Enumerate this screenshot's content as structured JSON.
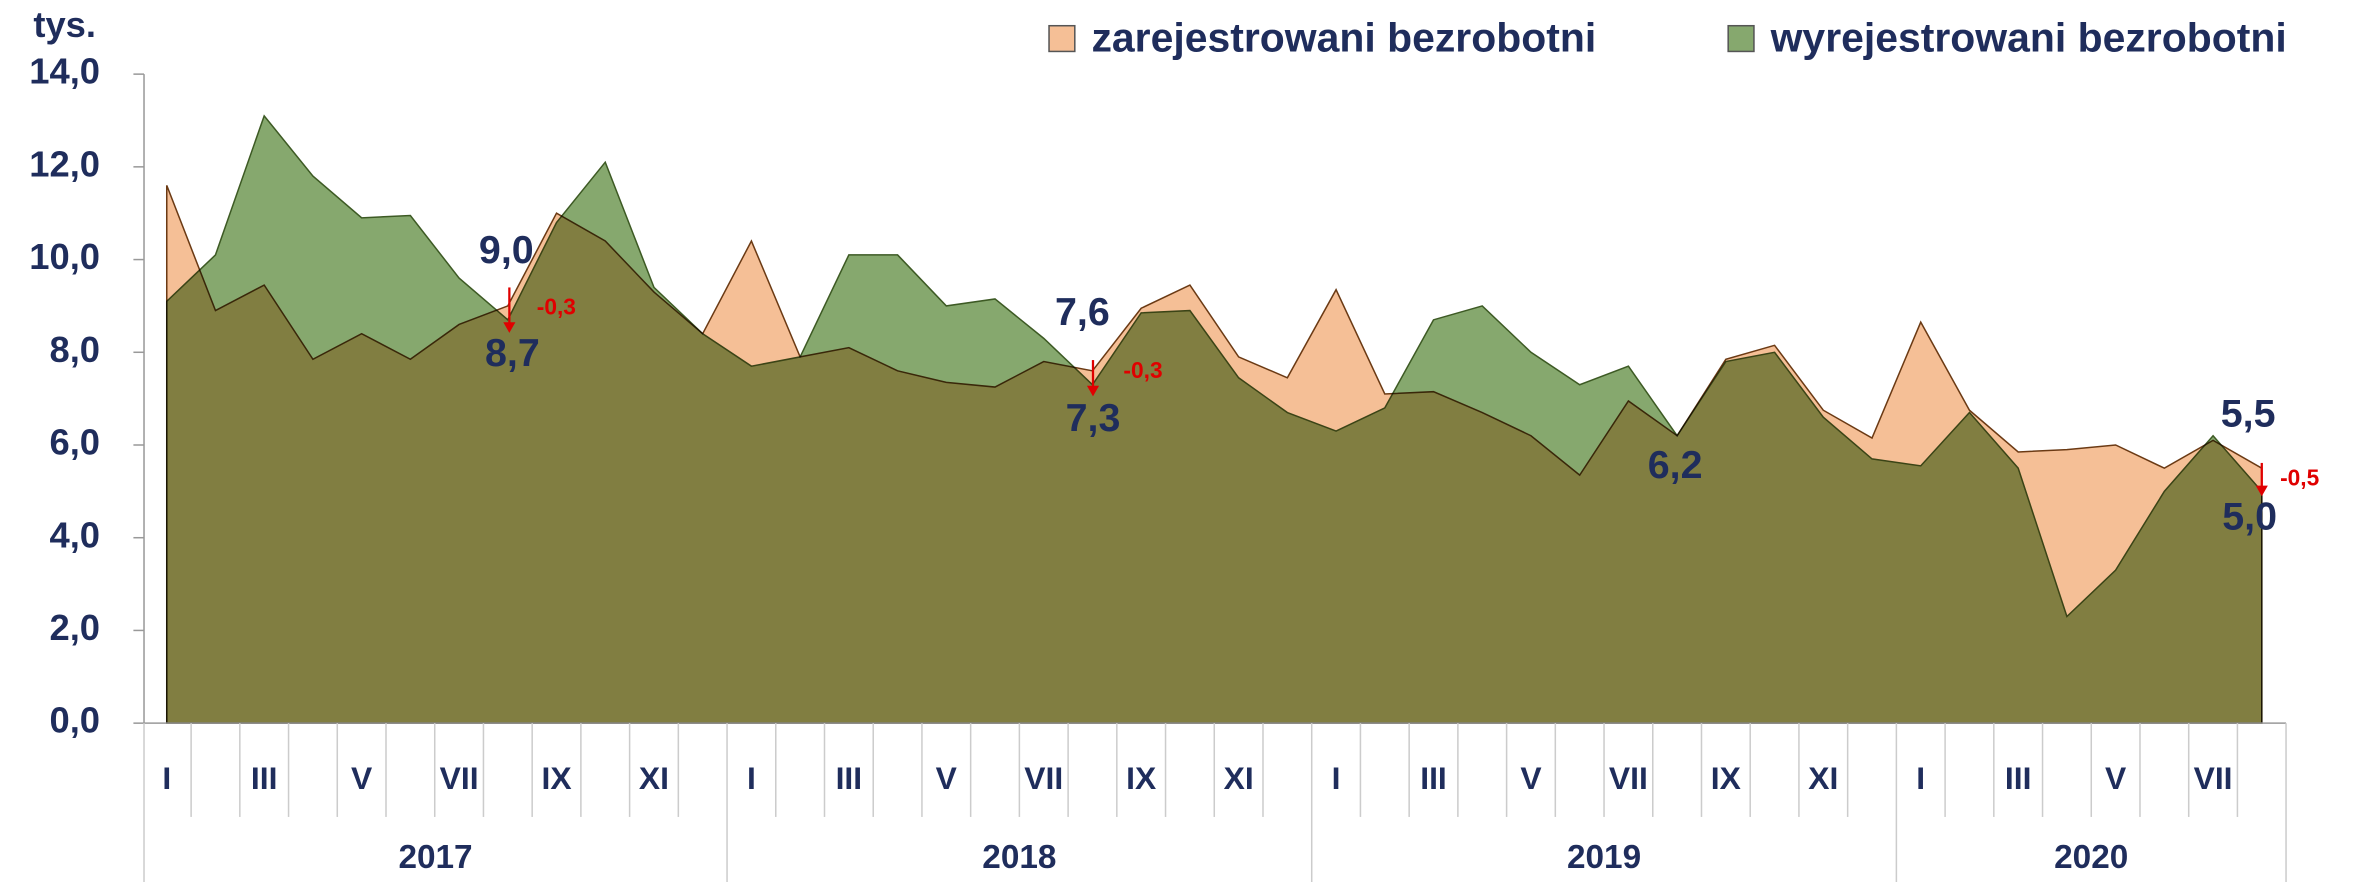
{
  "chart_data": {
    "type": "area",
    "y_label": "tys.",
    "categories": [
      "I",
      null,
      "III",
      null,
      "V",
      null,
      "VII",
      null,
      "IX",
      null,
      "XI",
      null,
      "I",
      null,
      "III",
      null,
      "V",
      null,
      "VII",
      null,
      "IX",
      null,
      "XI",
      null,
      "I",
      null,
      "III",
      null,
      "V",
      null,
      "VII",
      null,
      "IX",
      null,
      "XI",
      null,
      "I",
      null,
      "III",
      null,
      "V",
      null,
      "VII",
      null
    ],
    "x_groups": [
      "2017",
      "2018",
      "2019",
      "2020"
    ],
    "series": [
      {
        "name": "zarejestrowani bezrobotni",
        "color": "#f5bf96",
        "values": [
          11.6,
          8.9,
          9.45,
          7.85,
          8.4,
          7.85,
          8.6,
          9.0,
          11.0,
          10.4,
          9.3,
          8.4,
          10.4,
          7.9,
          8.1,
          7.6,
          7.35,
          7.25,
          7.8,
          7.6,
          8.95,
          9.45,
          7.9,
          7.45,
          9.35,
          7.1,
          7.15,
          6.7,
          6.2,
          5.35,
          6.95,
          6.2,
          7.85,
          8.15,
          6.75,
          6.15,
          8.65,
          6.75,
          5.85,
          5.9,
          6.0,
          5.5,
          6.1,
          5.5
        ]
      },
      {
        "name": "wyrejestrowani bezrobotni",
        "color": "#86a86e",
        "values": [
          9.1,
          10.1,
          13.1,
          11.8,
          10.9,
          10.95,
          9.6,
          8.7,
          10.8,
          12.1,
          9.4,
          8.4,
          7.7,
          7.9,
          10.1,
          10.1,
          9.0,
          9.15,
          8.3,
          7.3,
          8.85,
          8.9,
          7.45,
          6.7,
          6.3,
          6.8,
          8.7,
          9.0,
          8.0,
          7.3,
          7.7,
          6.2,
          7.8,
          8.0,
          6.6,
          5.7,
          5.55,
          6.7,
          5.5,
          2.3,
          3.3,
          5.0,
          6.2,
          5.0
        ]
      }
    ],
    "ylim": [
      0,
      14
    ],
    "yticks": [
      {
        "value": 0,
        "label": "0,0"
      },
      {
        "value": 2,
        "label": "2,0"
      },
      {
        "value": 4,
        "label": "4,0"
      },
      {
        "value": 6,
        "label": "6,0"
      },
      {
        "value": 8,
        "label": "8,0"
      },
      {
        "value": 10,
        "label": "10,0"
      },
      {
        "value": 12,
        "label": "12,0"
      },
      {
        "value": 14,
        "label": "14,0"
      }
    ],
    "legend": "top-right",
    "annotations": [
      "9,0",
      "8,7",
      "-0,3",
      "7,6",
      "7,3",
      "-0,3",
      "6,2",
      "5,5",
      "5,0",
      "-0,5"
    ]
  }
}
